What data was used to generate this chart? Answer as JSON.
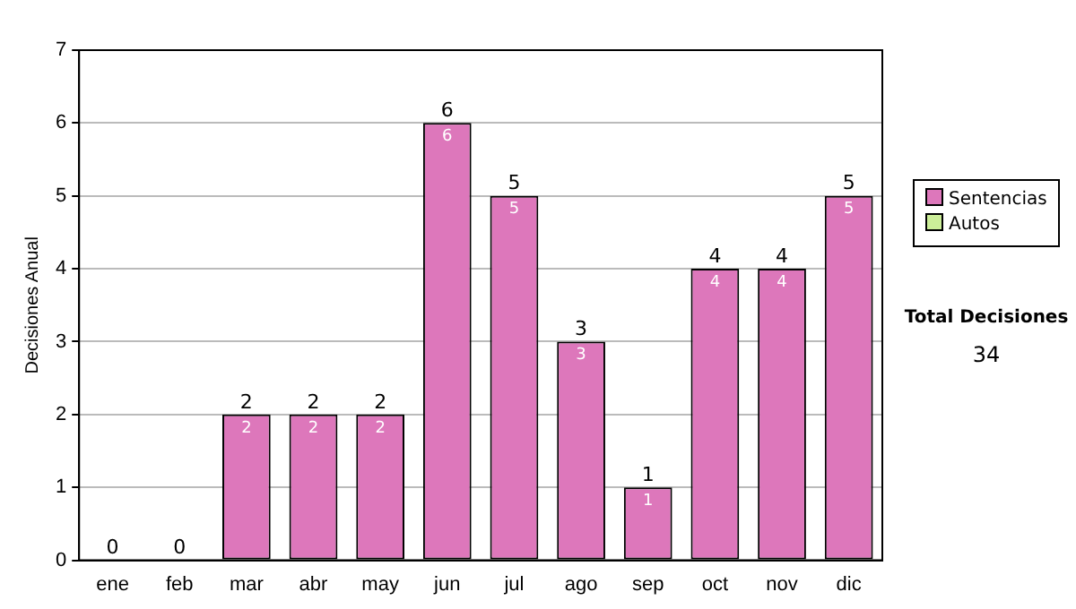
{
  "chart_data": {
    "type": "bar",
    "stacked": true,
    "ylabel": "Decisiones Anual",
    "categories": [
      "ene",
      "feb",
      "mar",
      "abr",
      "may",
      "jun",
      "jul",
      "ago",
      "sep",
      "oct",
      "nov",
      "dic"
    ],
    "series": [
      {
        "name": "Sentencias",
        "color": "#dd77bb",
        "values": [
          0,
          0,
          2,
          2,
          2,
          6,
          5,
          3,
          1,
          4,
          4,
          5
        ],
        "value_labels": [
          null,
          null,
          "2",
          "2",
          "2",
          "6",
          "5",
          "3",
          "1",
          "4",
          "4",
          "5"
        ]
      },
      {
        "name": "Autos",
        "color": "#ccee99",
        "values": [
          0,
          0,
          0,
          0,
          0,
          0,
          0,
          0,
          0,
          0,
          0,
          0
        ]
      }
    ],
    "totals": [
      "0",
      "0",
      "2",
      "2",
      "2",
      "6",
      "5",
      "3",
      "1",
      "4",
      "4",
      "5"
    ],
    "ylim": [
      0,
      7
    ],
    "yticks": [
      0,
      1,
      2,
      3,
      4,
      5,
      6,
      7
    ],
    "grid": "y",
    "legend": "right",
    "annotations": [
      "Total Decisiones",
      "34"
    ]
  }
}
